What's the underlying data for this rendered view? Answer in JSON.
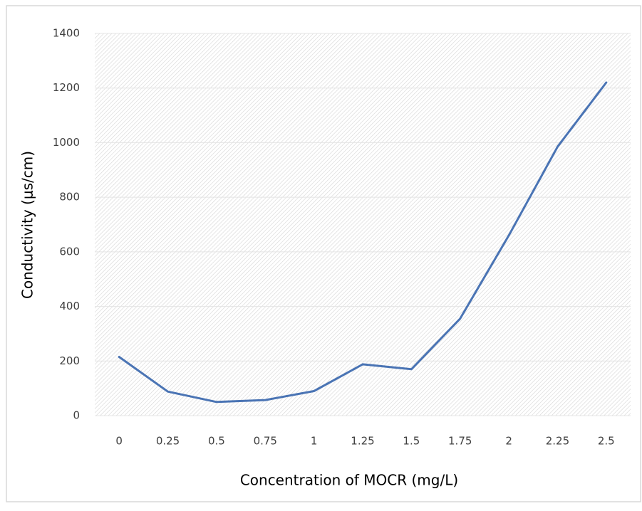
{
  "chart_data": {
    "type": "line",
    "categories": [
      "0",
      "0.25",
      "0.5",
      "0.75",
      "1",
      "1.25",
      "1.5",
      "1.75",
      "2",
      "2.25",
      "2.5"
    ],
    "series": [
      {
        "name": "Conductivity",
        "color": "#4a74b4",
        "values": [
          215,
          88,
          50,
          57,
          90,
          188,
          170,
          355,
          660,
          985,
          1220
        ]
      }
    ],
    "xlabel": "Concentration of MOCR (mg/L)",
    "ylabel": "Conductivity (μs/cm)",
    "ylim": [
      0,
      1400
    ],
    "yticks": [
      0,
      200,
      400,
      600,
      800,
      1000,
      1200,
      1400
    ],
    "grid": true
  }
}
